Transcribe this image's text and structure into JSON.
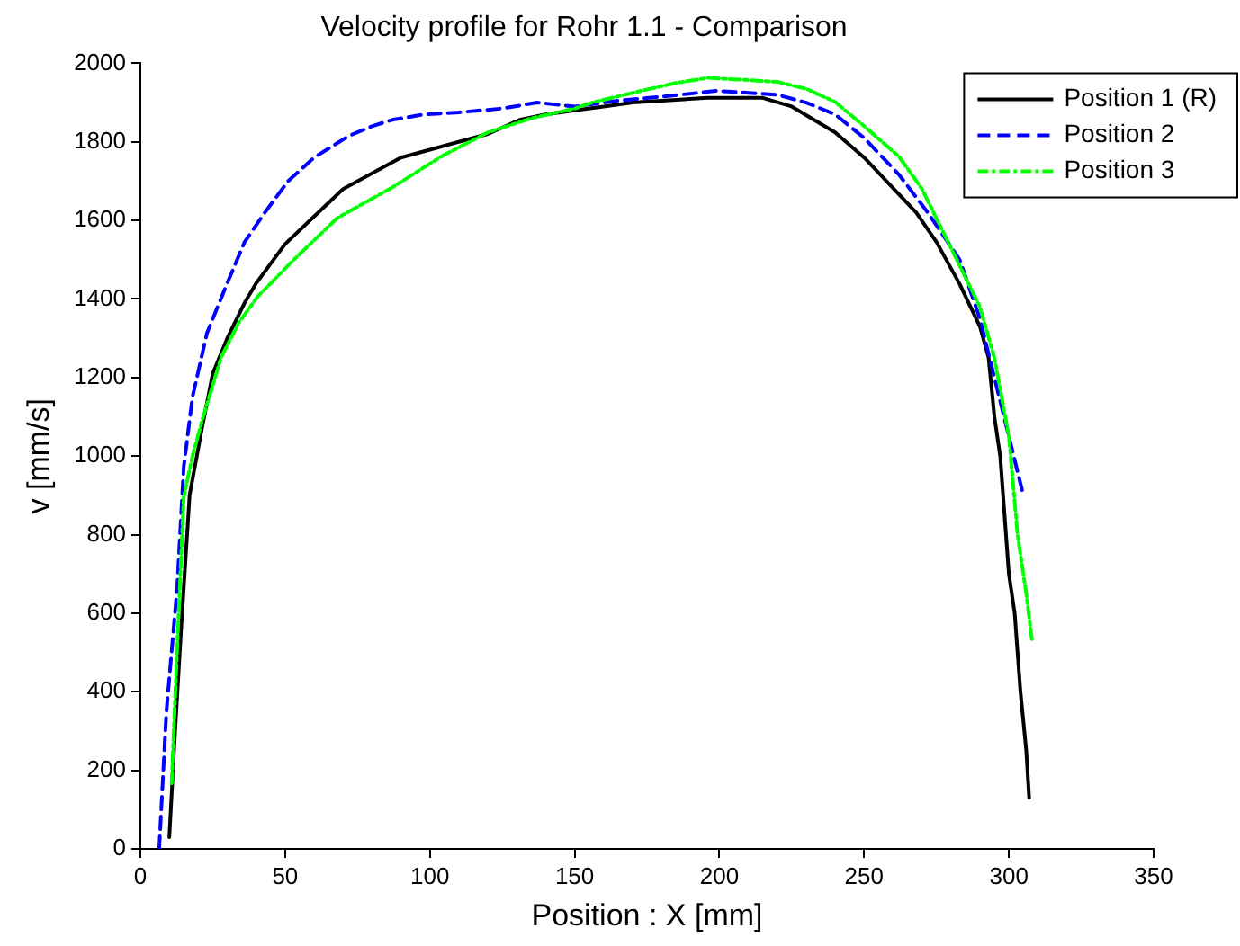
{
  "chart_data": {
    "type": "line",
    "title": "Velocity profile for Rohr 1.1 - Comparison",
    "xlabel": "Position : X [mm]",
    "ylabel": "v [mm/s]",
    "xlim": [
      0,
      350
    ],
    "xticks": [
      0,
      50,
      100,
      150,
      200,
      250,
      300,
      350
    ],
    "ylim": [
      0,
      2000
    ],
    "yticks": [
      0,
      200,
      400,
      600,
      800,
      1000,
      1200,
      1400,
      1600,
      1800,
      2000
    ],
    "grid": false,
    "legend": "top right",
    "marker": "none",
    "series": [
      {
        "name": "Position 1 (R)",
        "color": "#000000",
        "line_style": "solid",
        "x": [
          10,
          12,
          14,
          17,
          21,
          25,
          30,
          36,
          40,
          50,
          60,
          70,
          80,
          90,
          100,
          110,
          120,
          131,
          140,
          150,
          160,
          170,
          180,
          196,
          205,
          215,
          225,
          240,
          250,
          258,
          268,
          275,
          283,
          290,
          293,
          295,
          297,
          300,
          302,
          304,
          306,
          307
        ],
        "values": [
          30,
          300,
          550,
          900,
          1060,
          1210,
          1300,
          1390,
          1440,
          1540,
          1610,
          1680,
          1720,
          1760,
          1780,
          1800,
          1820,
          1856,
          1870,
          1880,
          1890,
          1900,
          1905,
          1912,
          1912,
          1912,
          1890,
          1824,
          1760,
          1698,
          1620,
          1545,
          1438,
          1330,
          1250,
          1100,
          1000,
          700,
          600,
          400,
          250,
          130
        ]
      },
      {
        "name": "Position 2",
        "color": "#0000ff",
        "line_style": "dashed",
        "x": [
          6.5,
          9,
          12.7,
          15,
          18,
          23,
          30,
          36,
          43,
          51,
          60,
          72,
          80,
          87,
          98,
          110,
          125,
          137,
          150,
          165,
          180,
          199,
          210,
          220,
          230,
          240,
          250,
          262,
          272,
          283,
          290,
          295,
          300,
          305
        ],
        "values": [
          0,
          350,
          663,
          974,
          1150,
          1313,
          1440,
          1545,
          1620,
          1700,
          1760,
          1815,
          1840,
          1856,
          1870,
          1875,
          1885,
          1900,
          1890,
          1905,
          1915,
          1930,
          1925,
          1920,
          1900,
          1870,
          1810,
          1717,
          1620,
          1500,
          1350,
          1200,
          1050,
          900
        ]
      },
      {
        "name": "Position 3",
        "color": "#00ff00",
        "line_style": "dashdot",
        "x": [
          10.8,
          12.7,
          15,
          18,
          21.5,
          28,
          34,
          40.5,
          53,
          68,
          87,
          104,
          120,
          135,
          150,
          156,
          173,
          185,
          196,
          208,
          220,
          230,
          240,
          250,
          262,
          270,
          278,
          290,
          295,
          300,
          303,
          306,
          308
        ],
        "values": [
          167,
          510,
          896,
          1000,
          1095,
          1253,
          1340,
          1406,
          1500,
          1606,
          1684,
          1763,
          1824,
          1860,
          1885,
          1900,
          1930,
          1950,
          1963,
          1958,
          1953,
          1935,
          1902,
          1840,
          1763,
          1680,
          1560,
          1380,
          1250,
          1050,
          800,
          650,
          530
        ]
      }
    ]
  }
}
